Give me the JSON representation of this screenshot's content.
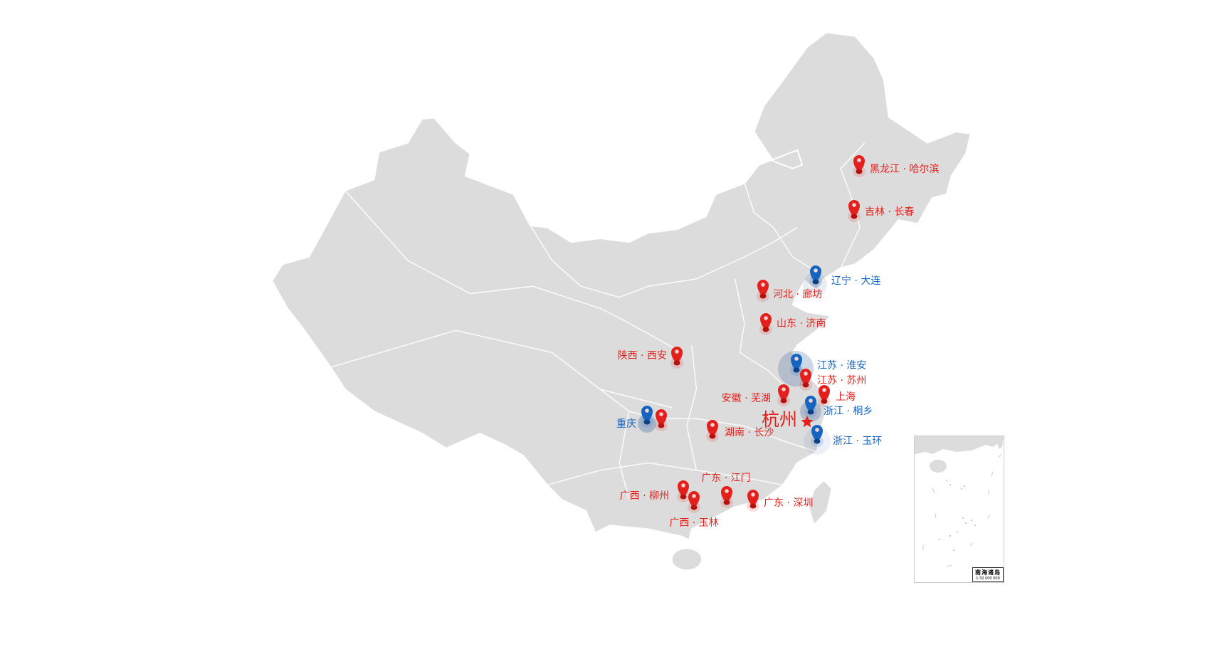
{
  "colors": {
    "red": "#e3201b",
    "blue": "#1565c0",
    "land": "#dcdcdc",
    "border": "#ffffff"
  },
  "center": {
    "label": "杭州",
    "icon": "star-icon",
    "color": "#e3201b"
  },
  "markers": [
    {
      "label": "黑龙江 · 哈尔滨",
      "color": "red"
    },
    {
      "label": "吉林 · 长春",
      "color": "red"
    },
    {
      "label": "辽宁 · 大连",
      "color": "blue"
    },
    {
      "label": "河北 · 廊坊",
      "color": "red"
    },
    {
      "label": "山东 · 济南",
      "color": "red"
    },
    {
      "label": "陕西 · 西安",
      "color": "red"
    },
    {
      "label": "江苏 · 淮安",
      "color": "blue"
    },
    {
      "label": "江苏 · 苏州",
      "color": "red"
    },
    {
      "label": "安徽 · 芜湖",
      "color": "red"
    },
    {
      "label": "上海",
      "color": "red"
    },
    {
      "label": "浙江 · 桐乡",
      "color": "blue"
    },
    {
      "label": "浙江 · 玉环",
      "color": "blue"
    },
    {
      "label": "重庆",
      "color": "blue"
    },
    {
      "label": "湖南 · 长沙",
      "color": "red"
    },
    {
      "label": "广东 · 江门",
      "color": "red"
    },
    {
      "label": "广西 · 柳州",
      "color": "red"
    },
    {
      "label": "广西 · 玉林",
      "color": "red"
    },
    {
      "label": "广东 · 深圳",
      "color": "red"
    },
    {
      "label": "",
      "color": "red"
    }
  ],
  "inset": {
    "title": "南海诸岛",
    "scale": "1:32 000 000"
  }
}
